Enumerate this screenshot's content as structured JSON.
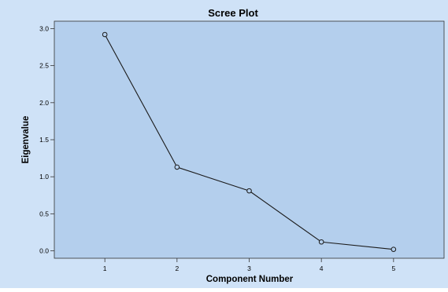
{
  "chart_data": {
    "type": "line",
    "title": "Scree Plot",
    "xlabel": "Component Number",
    "ylabel": "Eigenvalue",
    "x": [
      1,
      2,
      3,
      4,
      5
    ],
    "y": [
      2.92,
      1.13,
      0.81,
      0.12,
      0.02
    ],
    "xlim": [
      0.3,
      5.7
    ],
    "ylim": [
      -0.1,
      3.1
    ],
    "xticks": [
      "1",
      "2",
      "3",
      "4",
      "5"
    ],
    "yticks": [
      "0.0",
      "0.5",
      "1.0",
      "1.5",
      "2.0",
      "2.5",
      "3.0"
    ],
    "grid": false,
    "legend": "none",
    "marker": "open-circle"
  },
  "colors": {
    "outer_background": "#cfe2f7",
    "plot_background": "#b4cfed",
    "line": "#1a1a1a",
    "axis": "#333333"
  }
}
